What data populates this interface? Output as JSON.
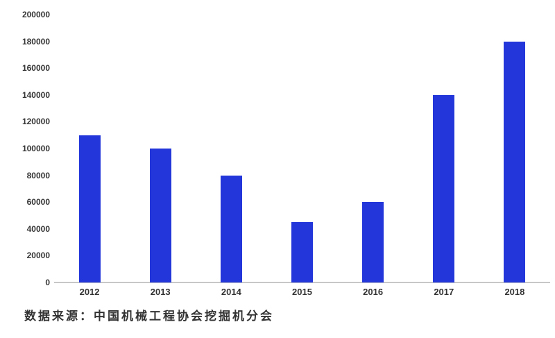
{
  "chart_data": {
    "type": "bar",
    "title": "",
    "xlabel": "",
    "ylabel": "",
    "categories": [
      "2012",
      "2013",
      "2014",
      "2015",
      "2016",
      "2017",
      "2018"
    ],
    "values": [
      110000,
      100000,
      80000,
      45000,
      60000,
      140000,
      180000
    ],
    "ylim": [
      0,
      200000
    ],
    "ytick_interval": 20000,
    "ytick_labels": [
      "0",
      "20000",
      "40000",
      "60000",
      "80000",
      "100000",
      "120000",
      "140000",
      "160000",
      "180000",
      "200000"
    ],
    "grid": false,
    "legend_position": "none",
    "colors": {
      "bar": "#2336d9",
      "axis_line": "#c7c7c7",
      "tick_text": "#333333"
    }
  },
  "source_note": {
    "text": "数据来源：中国机械工程协会挖掘机分会"
  }
}
